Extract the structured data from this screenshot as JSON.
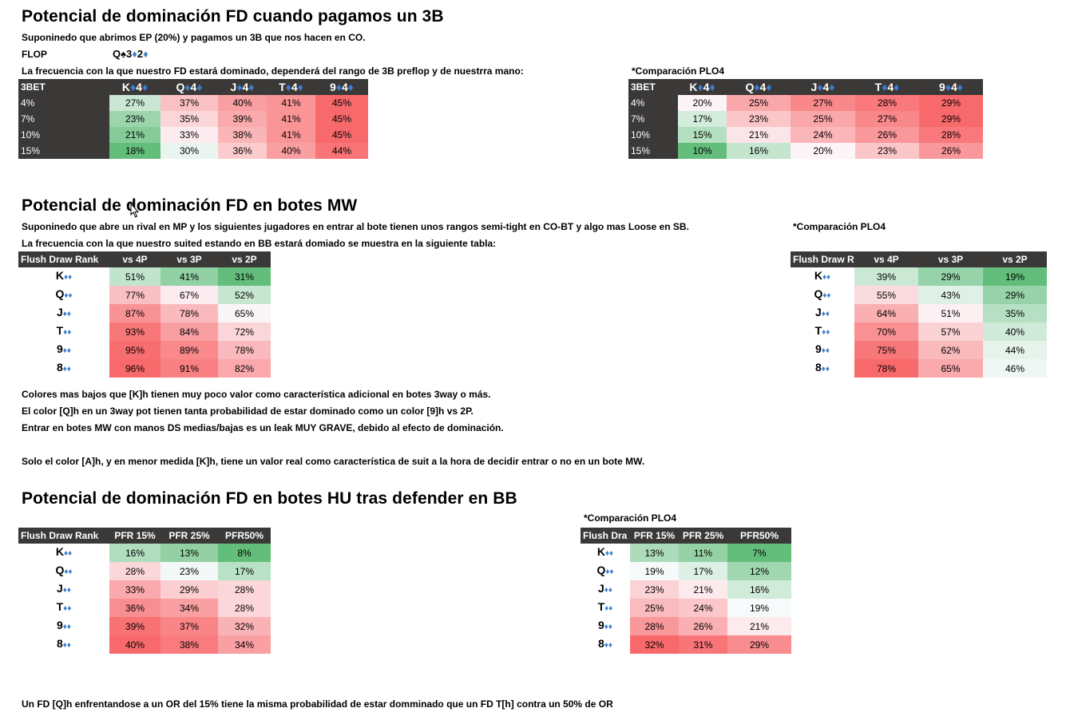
{
  "colors": {
    "dark": "#3b3838",
    "green": "#63be7b",
    "red": "#f8696b",
    "suit_blue": "#3d7fd0"
  },
  "s1": {
    "title": "Potencial de dominación FD cuando pagamos un 3B",
    "line1": "Suponinedo que abrimos EP (20%) y pagamos un 3B que nos hacen en CO.",
    "flop_label": "FLOP",
    "flop_cards": [
      {
        "rank": "Q",
        "suit": "♠",
        "color": "black"
      },
      {
        "rank": "3",
        "suit": "♦",
        "color": "blue"
      },
      {
        "rank": "2",
        "suit": "♦",
        "color": "blue"
      }
    ],
    "line2": "La frecuencia con la que nuestro FD estará dominado, dependerá del rango de 3B preflop y de nuestrra mano:",
    "comparison_label": "*Comparación PLO4",
    "table_main": {
      "corner": "3BET",
      "hands": [
        {
          "r1": "K",
          "r2": "4"
        },
        {
          "r1": "Q",
          "r2": "4"
        },
        {
          "r1": "J",
          "r2": "4"
        },
        {
          "r1": "T",
          "r2": "4"
        },
        {
          "r1": "9",
          "r2": "4"
        }
      ],
      "rows": [
        {
          "label": "4%",
          "values": [
            27,
            37,
            40,
            41,
            45
          ]
        },
        {
          "label": "7%",
          "values": [
            23,
            35,
            39,
            41,
            45
          ]
        },
        {
          "label": "10%",
          "values": [
            21,
            33,
            38,
            41,
            45
          ]
        },
        {
          "label": "15%",
          "values": [
            18,
            30,
            36,
            40,
            44
          ]
        }
      ]
    },
    "table_cmp": {
      "corner": "3BET",
      "hands": [
        {
          "r1": "K",
          "r2": "4"
        },
        {
          "r1": "Q",
          "r2": "4"
        },
        {
          "r1": "J",
          "r2": "4"
        },
        {
          "r1": "T",
          "r2": "4"
        },
        {
          "r1": "9",
          "r2": "4"
        }
      ],
      "rows": [
        {
          "label": "4%",
          "values": [
            20,
            25,
            27,
            28,
            29
          ]
        },
        {
          "label": "7%",
          "values": [
            17,
            23,
            25,
            27,
            29
          ]
        },
        {
          "label": "10%",
          "values": [
            15,
            21,
            24,
            26,
            28
          ]
        },
        {
          "label": "15%",
          "values": [
            10,
            16,
            20,
            23,
            26
          ]
        }
      ]
    }
  },
  "s2": {
    "title": "Potencial de dominación FD en botes MW",
    "line1": "Suponinedo que abre un rival en MP y los siguientes jugadores en entrar al bote tienen unos rangos semi-tight en CO-BT y algo mas Loose en SB.",
    "line2": "La frecuencia con la que nuestro suited estando en BB estará domiado se muestra en la siguiente tabla:",
    "comparison_label": "*Comparación PLO4",
    "table_main": {
      "corner": "Flush Draw Rank",
      "columns": [
        "vs 4P",
        "vs 3P",
        "vs 2P"
      ],
      "rows": [
        {
          "rank": "K",
          "values": [
            51,
            41,
            31
          ]
        },
        {
          "rank": "Q",
          "values": [
            77,
            67,
            52
          ]
        },
        {
          "rank": "J",
          "values": [
            87,
            78,
            65
          ]
        },
        {
          "rank": "T",
          "values": [
            93,
            84,
            72
          ]
        },
        {
          "rank": "9",
          "values": [
            95,
            89,
            78
          ]
        },
        {
          "rank": "8",
          "values": [
            96,
            91,
            82
          ]
        }
      ]
    },
    "table_cmp": {
      "corner": "Flush Draw R",
      "columns": [
        "vs 4P",
        "vs 3P",
        "vs 2P"
      ],
      "rows": [
        {
          "rank": "K",
          "values": [
            39,
            29,
            19
          ]
        },
        {
          "rank": "Q",
          "values": [
            55,
            43,
            29
          ]
        },
        {
          "rank": "J",
          "values": [
            64,
            51,
            35
          ]
        },
        {
          "rank": "T",
          "values": [
            70,
            57,
            40
          ]
        },
        {
          "rank": "9",
          "values": [
            75,
            62,
            44
          ]
        },
        {
          "rank": "8",
          "values": [
            78,
            65,
            46
          ]
        }
      ]
    },
    "notes": [
      "Colores mas bajos que [K]h tienen muy poco valor como característica adicional en botes 3way o más.",
      "El color [Q]h en un 3way pot tienen tanta probabilidad de estar dominado como un color [9]h vs 2P.",
      "Entrar en botes MW con manos DS medias/bajas es un leak MUY GRAVE, debido al efecto de dominación.",
      "Solo el color [A]h, y en menor medida [K]h, tiene un valor real como característica de suit a la hora de decidir entrar o no en un bote MW."
    ]
  },
  "s3": {
    "title": "Potencial de dominación FD en botes HU tras defender en BB",
    "comparison_label": "*Comparación PLO4",
    "table_main": {
      "corner": "Flush Draw Rank",
      "columns": [
        "PFR 15%",
        "PFR 25%",
        "PFR50%"
      ],
      "rows": [
        {
          "rank": "K",
          "values": [
            16,
            13,
            8
          ]
        },
        {
          "rank": "Q",
          "values": [
            28,
            23,
            17
          ]
        },
        {
          "rank": "J",
          "values": [
            33,
            29,
            28
          ]
        },
        {
          "rank": "T",
          "values": [
            36,
            34,
            28
          ]
        },
        {
          "rank": "9",
          "values": [
            39,
            37,
            32
          ]
        },
        {
          "rank": "8",
          "values": [
            40,
            38,
            34
          ]
        }
      ]
    },
    "table_cmp": {
      "corner": "Flush Dra",
      "columns": [
        "PFR 15%",
        "PFR 25%",
        "PFR50%"
      ],
      "rows": [
        {
          "rank": "K",
          "values": [
            13,
            11,
            7
          ]
        },
        {
          "rank": "Q",
          "values": [
            19,
            17,
            12
          ]
        },
        {
          "rank": "J",
          "values": [
            23,
            21,
            16
          ]
        },
        {
          "rank": "T",
          "values": [
            25,
            24,
            19
          ]
        },
        {
          "rank": "9",
          "values": [
            28,
            26,
            21
          ]
        },
        {
          "rank": "8",
          "values": [
            32,
            31,
            29
          ]
        }
      ]
    },
    "footer": "Un FD [Q]h enfrentandose a un OR del 15% tiene la misma probabilidad de estar domminado que un FD T[h] contra un 50% de OR"
  }
}
